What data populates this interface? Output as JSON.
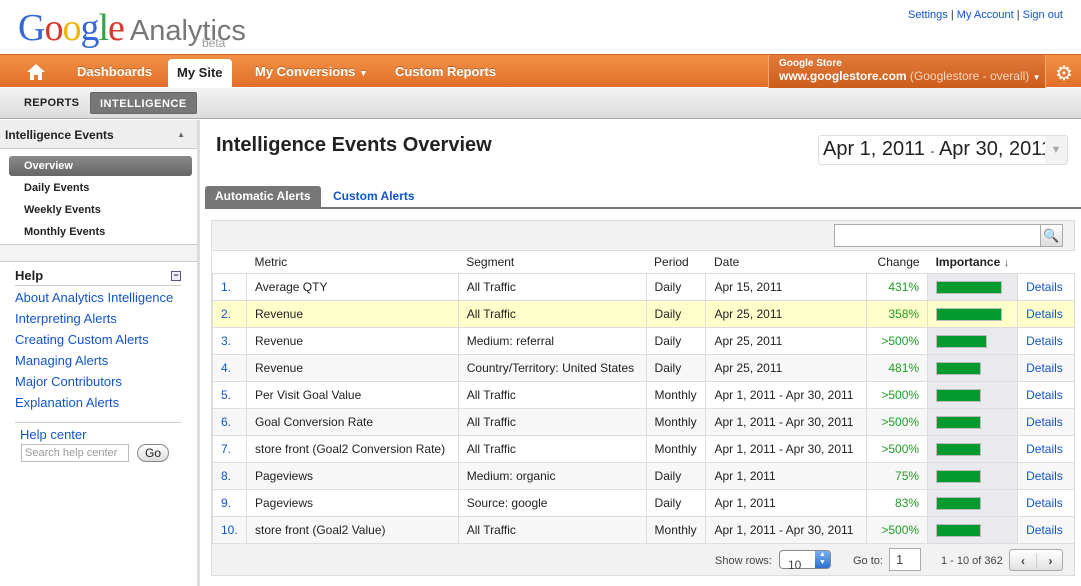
{
  "brand": {
    "logo_letters": [
      "G",
      "o",
      "o",
      "g",
      "l",
      "e"
    ],
    "product": "Analytics",
    "badge": "beta"
  },
  "top_links": [
    "Settings",
    "My Account",
    "Sign out"
  ],
  "nav": {
    "items": [
      "Dashboards",
      "My Site",
      "My Conversions",
      "Custom Reports"
    ],
    "active": "My Site"
  },
  "account": {
    "name": "Google Store",
    "url": "www.googlestore.com",
    "profile": "(Googlestore - overall)"
  },
  "subnav": {
    "reports": "REPORTS",
    "intelligence": "INTELLIGENCE"
  },
  "sidebar": {
    "section": "Intelligence Events",
    "items": [
      "Overview",
      "Daily Events",
      "Weekly Events",
      "Monthly Events"
    ],
    "help_title": "Help",
    "help_links": [
      "About Analytics Intelligence",
      "Interpreting Alerts",
      "Creating Custom Alerts",
      "Managing Alerts",
      "Major Contributors",
      "Explanation Alerts"
    ],
    "help_center": "Help center",
    "search_placeholder": "Search help center",
    "go": "Go"
  },
  "main": {
    "title": "Intelligence Events Overview",
    "date_start": "Apr 1, 2011",
    "date_sep": "-",
    "date_end": "Apr 30, 2011",
    "tabs": [
      "Automatic Alerts",
      "Custom Alerts"
    ],
    "columns": [
      "Metric",
      "Segment",
      "Period",
      "Date",
      "Change",
      "Importance"
    ],
    "details_label": "Details",
    "rows": [
      {
        "n": "1.",
        "metric": "Average QTY",
        "segment": "All Traffic",
        "period": "Daily",
        "date": "Apr 15, 2011",
        "change": "431%",
        "importance": 1.0
      },
      {
        "n": "2.",
        "metric": "Revenue",
        "segment": "All Traffic",
        "period": "Daily",
        "date": "Apr 25, 2011",
        "change": "358%",
        "importance": 1.0
      },
      {
        "n": "3.",
        "metric": "Revenue",
        "segment": "Medium: referral",
        "period": "Daily",
        "date": "Apr 25, 2011",
        "change": ">500%",
        "importance": 0.78
      },
      {
        "n": "4.",
        "metric": "Revenue",
        "segment": "Country/Territory: United States",
        "period": "Daily",
        "date": "Apr 25, 2011",
        "change": "481%",
        "importance": 0.68
      },
      {
        "n": "5.",
        "metric": "Per Visit Goal Value",
        "segment": "All Traffic",
        "period": "Monthly",
        "date": "Apr 1, 2011 - Apr 30, 2011",
        "change": ">500%",
        "importance": 0.68
      },
      {
        "n": "6.",
        "metric": "Goal Conversion Rate",
        "segment": "All Traffic",
        "period": "Monthly",
        "date": "Apr 1, 2011 - Apr 30, 2011",
        "change": ">500%",
        "importance": 0.68
      },
      {
        "n": "7.",
        "metric": "store front (Goal2 Conversion Rate)",
        "segment": "All Traffic",
        "period": "Monthly",
        "date": "Apr 1, 2011 - Apr 30, 2011",
        "change": ">500%",
        "importance": 0.68
      },
      {
        "n": "8.",
        "metric": "Pageviews",
        "segment": "Medium: organic",
        "period": "Daily",
        "date": "Apr 1, 2011",
        "change": "75%",
        "importance": 0.68
      },
      {
        "n": "9.",
        "metric": "Pageviews",
        "segment": "Source: google",
        "period": "Daily",
        "date": "Apr 1, 2011",
        "change": "83%",
        "importance": 0.68
      },
      {
        "n": "10.",
        "metric": "store front (Goal2 Value)",
        "segment": "All Traffic",
        "period": "Monthly",
        "date": "Apr 1, 2011 - Apr 30, 2011",
        "change": ">500%",
        "importance": 0.68
      }
    ],
    "footer": {
      "show_rows_label": "Show rows:",
      "show_rows": "10",
      "goto_label": "Go to:",
      "goto": "1",
      "range": "1 - 10 of 362"
    }
  },
  "colors": {
    "nav_orange": "#e87c35",
    "bar_green": "#009a2e",
    "link": "#1155cc"
  }
}
